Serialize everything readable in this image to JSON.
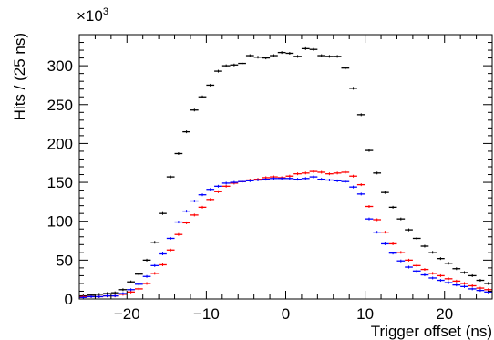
{
  "chart_data": {
    "type": "scatter",
    "xlabel": "Trigger offset (ns)",
    "ylabel": "Hits / (25 ns)",
    "y_multiplier": "×10",
    "y_multiplier_exp": "3",
    "xlim": [
      -26,
      26
    ],
    "ylim": [
      0,
      340
    ],
    "x_ticks": [
      -20,
      -10,
      0,
      10,
      20
    ],
    "y_ticks": [
      0,
      50,
      100,
      150,
      200,
      250,
      300
    ],
    "grid": false,
    "legend": "none",
    "x": [
      -25.5,
      -24.5,
      -23.5,
      -22.5,
      -21.5,
      -20.5,
      -19.5,
      -18.5,
      -17.5,
      -16.5,
      -15.5,
      -14.5,
      -13.5,
      -12.5,
      -11.5,
      -10.5,
      -9.5,
      -8.5,
      -7.5,
      -6.5,
      -5.5,
      -4.5,
      -3.5,
      -2.5,
      -1.5,
      -0.5,
      0.5,
      1.5,
      2.5,
      3.5,
      4.5,
      5.5,
      6.5,
      7.5,
      8.5,
      9.5,
      10.5,
      11.5,
      12.5,
      13.5,
      14.5,
      15.5,
      16.5,
      17.5,
      18.5,
      19.5,
      20.5,
      21.5,
      22.5,
      23.5,
      24.5,
      25.5
    ],
    "series": [
      {
        "color": "#000000",
        "values": [
          4,
          5,
          6,
          7,
          8,
          12,
          22,
          32,
          50,
          73,
          110,
          157,
          187,
          215,
          243,
          260,
          275,
          293,
          300,
          301,
          303,
          313,
          311,
          310,
          313,
          317,
          316,
          312,
          322,
          321,
          313,
          312,
          312,
          297,
          271,
          237,
          191,
          162,
          137,
          118,
          103,
          89,
          78,
          68,
          60,
          52,
          46,
          39,
          34,
          30,
          24,
          20
        ]
      },
      {
        "color": "#ff0000",
        "values": [
          3,
          3,
          3,
          4,
          4,
          6,
          9,
          13,
          20,
          33,
          44,
          63,
          83,
          98,
          108,
          118,
          128,
          138,
          145,
          149,
          151,
          153,
          154,
          156,
          157,
          156,
          158,
          161,
          162,
          164,
          163,
          161,
          162,
          163,
          158,
          147,
          119,
          102,
          86,
          71,
          60,
          50,
          43,
          38,
          33,
          30,
          26,
          23,
          20,
          17,
          14,
          12
        ]
      },
      {
        "color": "#0000ff",
        "values": [
          2,
          3,
          3,
          4,
          4,
          7,
          12,
          19,
          29,
          43,
          58,
          78,
          99,
          113,
          126,
          134,
          141,
          145,
          149,
          150,
          151,
          152,
          153,
          154,
          155,
          155,
          155,
          154,
          155,
          157,
          154,
          153,
          152,
          151,
          144,
          135,
          103,
          86,
          71,
          59,
          49,
          41,
          36,
          31,
          27,
          24,
          21,
          18,
          16,
          13,
          11,
          9
        ]
      }
    ]
  }
}
